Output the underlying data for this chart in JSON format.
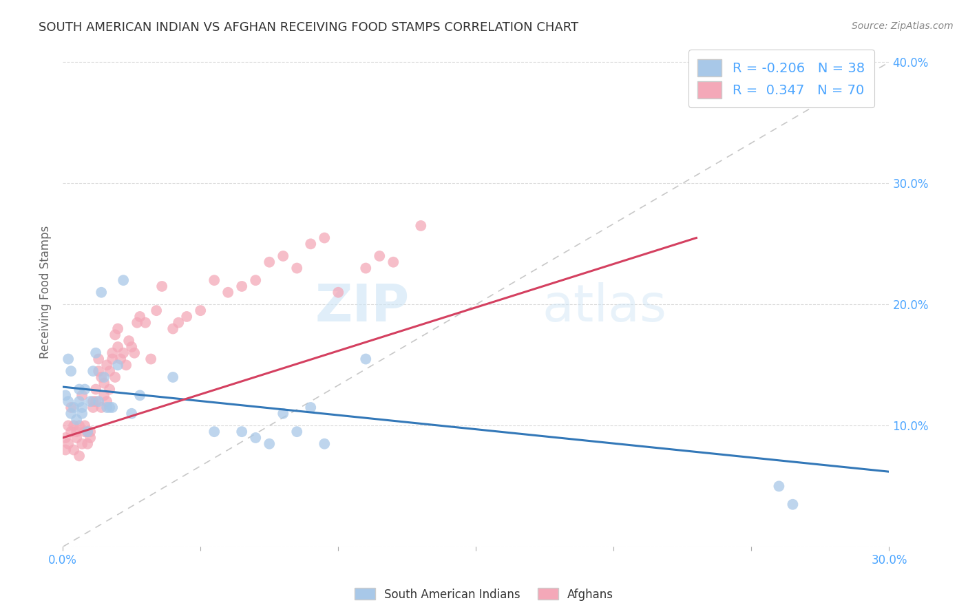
{
  "title": "SOUTH AMERICAN INDIAN VS AFGHAN RECEIVING FOOD STAMPS CORRELATION CHART",
  "source": "Source: ZipAtlas.com",
  "ylabel": "Receiving Food Stamps",
  "xlim": [
    0.0,
    0.3
  ],
  "ylim": [
    0.0,
    0.42
  ],
  "xticks": [
    0.0,
    0.05,
    0.1,
    0.15,
    0.2,
    0.25,
    0.3
  ],
  "yticks": [
    0.0,
    0.1,
    0.2,
    0.3,
    0.4
  ],
  "ytick_labels_right": [
    "",
    "10.0%",
    "20.0%",
    "30.0%",
    "40.0%"
  ],
  "xtick_labels": [
    "0.0%",
    "",
    "",
    "",
    "",
    "",
    "30.0%"
  ],
  "blue_color": "#a8c8e8",
  "pink_color": "#f4a8b8",
  "blue_line_color": "#3378b8",
  "pink_line_color": "#d44060",
  "R_blue": -0.206,
  "N_blue": 38,
  "R_pink": 0.347,
  "N_pink": 70,
  "legend_label_blue": "South American Indians",
  "legend_label_pink": "Afghans",
  "watermark_zip": "ZIP",
  "watermark_atlas": "atlas",
  "background_color": "#ffffff",
  "grid_color": "#cccccc",
  "title_color": "#333333",
  "axis_label_color": "#4da6ff",
  "blue_scatter_x": [
    0.001,
    0.002,
    0.002,
    0.003,
    0.003,
    0.004,
    0.005,
    0.006,
    0.006,
    0.007,
    0.007,
    0.008,
    0.009,
    0.01,
    0.011,
    0.012,
    0.013,
    0.014,
    0.015,
    0.016,
    0.017,
    0.018,
    0.02,
    0.022,
    0.025,
    0.028,
    0.04,
    0.055,
    0.065,
    0.07,
    0.075,
    0.08,
    0.085,
    0.09,
    0.095,
    0.11,
    0.26,
    0.265
  ],
  "blue_scatter_y": [
    0.125,
    0.155,
    0.12,
    0.145,
    0.11,
    0.115,
    0.105,
    0.12,
    0.13,
    0.11,
    0.115,
    0.13,
    0.095,
    0.12,
    0.145,
    0.16,
    0.12,
    0.21,
    0.14,
    0.115,
    0.115,
    0.115,
    0.15,
    0.22,
    0.11,
    0.125,
    0.14,
    0.095,
    0.095,
    0.09,
    0.085,
    0.11,
    0.095,
    0.115,
    0.085,
    0.155,
    0.05,
    0.035
  ],
  "pink_scatter_x": [
    0.001,
    0.001,
    0.002,
    0.002,
    0.003,
    0.003,
    0.004,
    0.004,
    0.005,
    0.005,
    0.006,
    0.006,
    0.007,
    0.007,
    0.008,
    0.008,
    0.009,
    0.009,
    0.01,
    0.01,
    0.011,
    0.011,
    0.012,
    0.012,
    0.013,
    0.013,
    0.014,
    0.014,
    0.015,
    0.015,
    0.016,
    0.016,
    0.017,
    0.017,
    0.018,
    0.018,
    0.019,
    0.019,
    0.02,
    0.02,
    0.021,
    0.022,
    0.023,
    0.024,
    0.025,
    0.026,
    0.027,
    0.028,
    0.03,
    0.032,
    0.034,
    0.036,
    0.04,
    0.042,
    0.045,
    0.05,
    0.055,
    0.06,
    0.065,
    0.07,
    0.075,
    0.08,
    0.085,
    0.09,
    0.095,
    0.1,
    0.11,
    0.115,
    0.12,
    0.13
  ],
  "pink_scatter_y": [
    0.09,
    0.08,
    0.1,
    0.085,
    0.095,
    0.115,
    0.08,
    0.1,
    0.09,
    0.095,
    0.075,
    0.1,
    0.085,
    0.125,
    0.095,
    0.1,
    0.085,
    0.095,
    0.09,
    0.095,
    0.12,
    0.115,
    0.13,
    0.12,
    0.145,
    0.155,
    0.115,
    0.14,
    0.125,
    0.135,
    0.12,
    0.15,
    0.13,
    0.145,
    0.155,
    0.16,
    0.14,
    0.175,
    0.165,
    0.18,
    0.155,
    0.16,
    0.15,
    0.17,
    0.165,
    0.16,
    0.185,
    0.19,
    0.185,
    0.155,
    0.195,
    0.215,
    0.18,
    0.185,
    0.19,
    0.195,
    0.22,
    0.21,
    0.215,
    0.22,
    0.235,
    0.24,
    0.23,
    0.25,
    0.255,
    0.21,
    0.23,
    0.24,
    0.235,
    0.265
  ],
  "blue_line_x": [
    0.0,
    0.3
  ],
  "blue_line_y": [
    0.132,
    0.062
  ],
  "pink_line_x": [
    0.0,
    0.23
  ],
  "pink_line_y": [
    0.09,
    0.255
  ],
  "dash_line_x": [
    0.0,
    0.3
  ],
  "dash_line_y": [
    0.0,
    0.4
  ]
}
